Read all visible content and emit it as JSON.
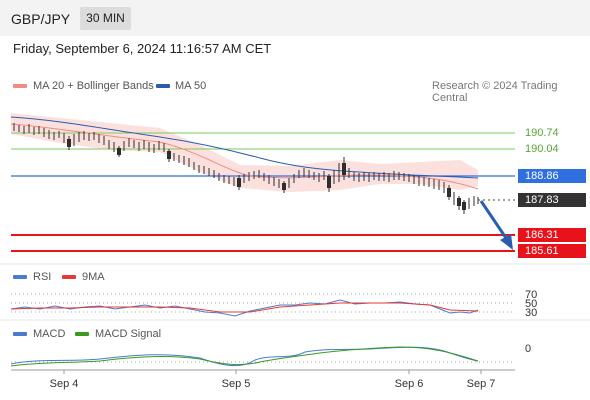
{
  "header": {
    "symbol": "GBP/JPY",
    "timeframe": "30 MIN"
  },
  "datetime": "Friday, September 6, 2024 11:16:57 AM CET",
  "legends": {
    "ma20": {
      "label": "MA 20 + Bollinger Bands",
      "color": "#f28b82"
    },
    "ma50": {
      "label": "MA 50",
      "color": "#2a5db0"
    },
    "credit": "Research © 2024 Trading Central",
    "rsi": {
      "label": "RSI",
      "color": "#4a7bd1"
    },
    "rsi9": {
      "label": "9MA",
      "color": "#e53935"
    },
    "macd": {
      "label": "MACD",
      "color": "#4a7bd1"
    },
    "macd_signal": {
      "label": "MACD Signal",
      "color": "#3a9a1e"
    }
  },
  "levels": [
    {
      "value": "190.74",
      "kind": "resistance-green"
    },
    {
      "value": "190.04",
      "kind": "resistance-green"
    },
    {
      "value": "188.86",
      "kind": "pivot-blue"
    },
    {
      "value": "187.83",
      "kind": "last-price"
    },
    {
      "value": "186.31",
      "kind": "target-red"
    },
    {
      "value": "185.61",
      "kind": "target-red"
    }
  ],
  "rsi_levels": [
    "70",
    "50",
    "30"
  ],
  "macd_zero": "0",
  "xaxis": [
    "Sep 4",
    "Sep 5",
    "Sep 6",
    "Sep 7"
  ],
  "colors": {
    "green": "#7dc95e",
    "blue": "#2f6fe0",
    "red": "#e8121b",
    "dark": "#333333",
    "candle_up": "#2e2e2e",
    "band": "#f9d5d3"
  }
}
